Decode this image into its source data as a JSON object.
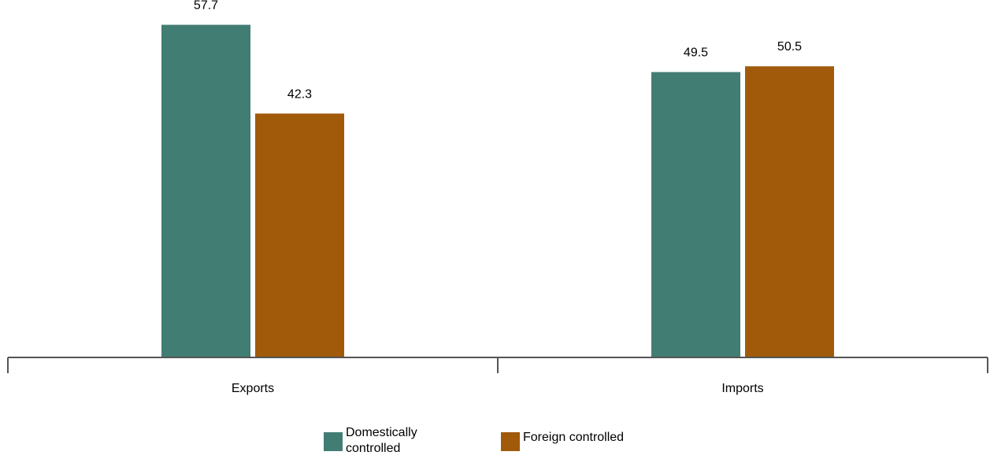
{
  "chart_data": {
    "type": "bar",
    "categories": [
      "Exports",
      "Imports"
    ],
    "series": [
      {
        "name": "Domestically controlled",
        "values": [
          57.7,
          49.5
        ],
        "color": "#427D73"
      },
      {
        "name": "Foreign controlled",
        "values": [
          42.3,
          50.5
        ],
        "color": "#A05A0A"
      }
    ],
    "data_labels": [
      "57.7",
      "42.3",
      "49.5",
      "50.5"
    ],
    "ylim": [
      0,
      62
    ],
    "grid": false,
    "legend_position": "bottom",
    "axis_color": "#555555"
  },
  "legend": [
    {
      "label": "Domestically controlled",
      "color": "#427D73"
    },
    {
      "label": "Foreign controlled",
      "color": "#A05A0A"
    }
  ]
}
